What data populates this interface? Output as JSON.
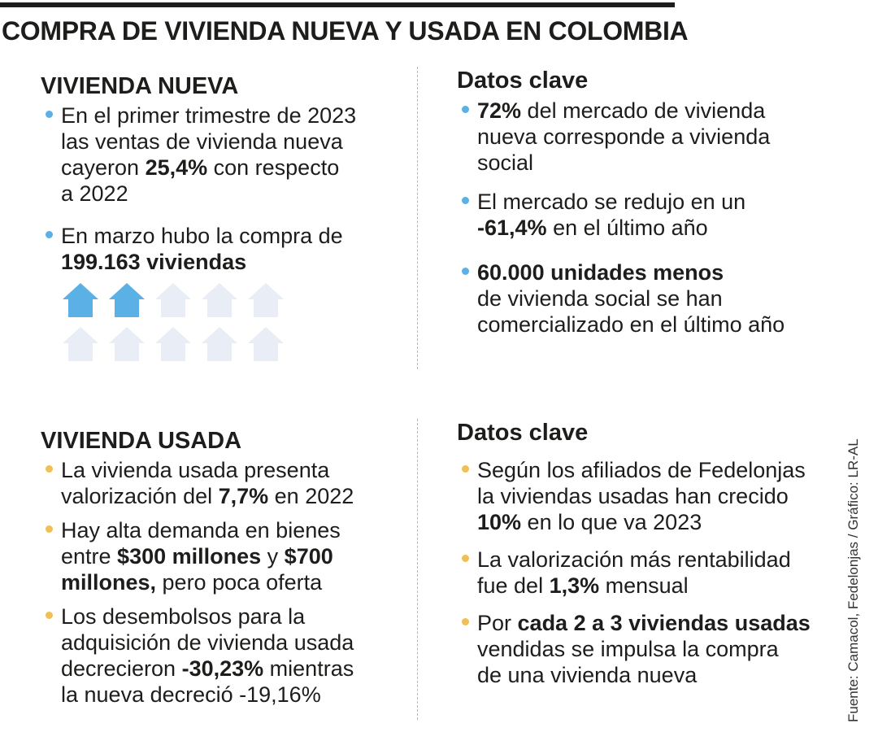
{
  "title": "COMPRA DE VIVIENDA NUEVA Y USADA EN COLOMBIA",
  "colors": {
    "nueva_accent": "#5bb0e6",
    "usada_accent": "#f0bf55",
    "house_empty": "#e8edf6"
  },
  "nueva": {
    "heading": "VIVIENDA NUEVA",
    "b1": {
      "l1": "En el primer trimestre de 2023",
      "l2": "las ventas de vivienda nueva",
      "l3a": "cayeron ",
      "l3b": "25,4%",
      "l3c": " con respecto",
      "l4": "a 2022"
    },
    "b2": {
      "l1": "En marzo hubo la compra de",
      "l2": "199.163 viviendas"
    },
    "houses": {
      "icon": "house-icon",
      "filled": 2,
      "total": 10
    }
  },
  "clave_nueva": {
    "heading": "Datos clave",
    "b1": {
      "l1a": "72%",
      "l1b": " del mercado de vivienda",
      "l2": "nueva corresponde a vivienda",
      "l3": "social"
    },
    "b2": {
      "l1": "El mercado se redujo en un",
      "l2a": "-61,4%",
      "l2b": " en el último año"
    },
    "b3": {
      "l1": "60.000 unidades menos",
      "l2": "de vivienda social se han",
      "l3": "comercializado en el último año"
    }
  },
  "usada": {
    "heading": "VIVIENDA USADA",
    "b1": {
      "l1": "La vivienda usada presenta",
      "l2a": "valorización del ",
      "l2b": "7,7%",
      "l2c": " en 2022"
    },
    "b2": {
      "l1": "Hay alta demanda en bienes",
      "l2a": "entre ",
      "l2b": "$300 millones",
      "l2c": " y ",
      "l2d": "$700",
      "l3a": "millones,",
      "l3b": " pero poca oferta"
    },
    "b3": {
      "l1": "Los desembolsos para la",
      "l2": "adquisición de vivienda usada",
      "l3a": "decrecieron ",
      "l3b": "-30,23%",
      "l3c": " mientras",
      "l4": "la nueva decreció -19,16%"
    }
  },
  "clave_usada": {
    "heading": "Datos clave",
    "b1": {
      "l1": "Según los afiliados de Fedelonjas",
      "l2": "la viviendas usadas han crecido",
      "l3a": "10%",
      "l3b": " en lo que va 2023"
    },
    "b2": {
      "l1": "La valorización más rentabilidad",
      "l2a": "fue del ",
      "l2b": "1,3%",
      "l2c": " mensual"
    },
    "b3": {
      "l1a": "Por ",
      "l1b": "cada 2 a 3 viviendas usadas",
      "l2": "vendidas se impulsa la compra",
      "l3": "de una vivienda nueva"
    }
  },
  "credit": "Fuente: Camacol, Fedelonjas / Gráfico: LR-AL"
}
